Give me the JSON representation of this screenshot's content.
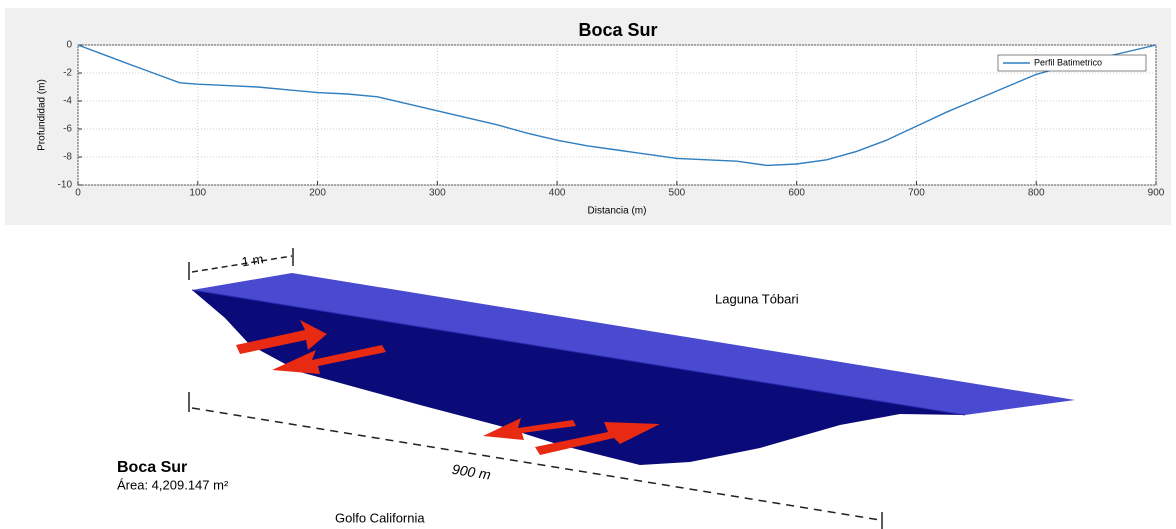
{
  "chart_data": {
    "type": "line",
    "title": "Boca Sur",
    "xlabel": "Distancia (m)",
    "ylabel": "Profundidad (m)",
    "x": [
      0,
      25,
      50,
      85,
      100,
      125,
      150,
      175,
      200,
      225,
      250,
      275,
      300,
      325,
      350,
      375,
      400,
      425,
      450,
      475,
      500,
      525,
      550,
      575,
      600,
      625,
      650,
      675,
      700,
      725,
      750,
      775,
      800,
      825,
      850,
      875,
      900
    ],
    "series": [
      {
        "name": "Perfil Batimetrico",
        "color": "#2f7ec0",
        "values": [
          0,
          -0.8,
          -1.6,
          -2.7,
          -2.8,
          -2.9,
          -3.0,
          -3.2,
          -3.4,
          -3.5,
          -3.7,
          -4.2,
          -4.7,
          -5.2,
          -5.7,
          -6.3,
          -6.8,
          -7.2,
          -7.5,
          -7.8,
          -8.1,
          -8.2,
          -8.3,
          -8.6,
          -8.5,
          -8.2,
          -7.6,
          -6.8,
          -5.8,
          -4.8,
          -3.9,
          -3.0,
          -2.1,
          -1.5,
          -1.0,
          -0.5,
          0
        ]
      }
    ],
    "xlim": [
      0,
      900
    ],
    "xticks": [
      0,
      100,
      200,
      300,
      400,
      500,
      600,
      700,
      800,
      900
    ],
    "ylim": [
      -10,
      0
    ],
    "yticks": [
      0,
      -2,
      -4,
      -6,
      -8,
      -10
    ],
    "grid": true,
    "legend": "upper right"
  },
  "diagram": {
    "width_label": "1 m",
    "lagoon": "Laguna Tóbari",
    "length_label": "900 m",
    "name": "Boca Sur",
    "area": "Área: 4,209.147  m²",
    "gulf": "Golfo California"
  }
}
